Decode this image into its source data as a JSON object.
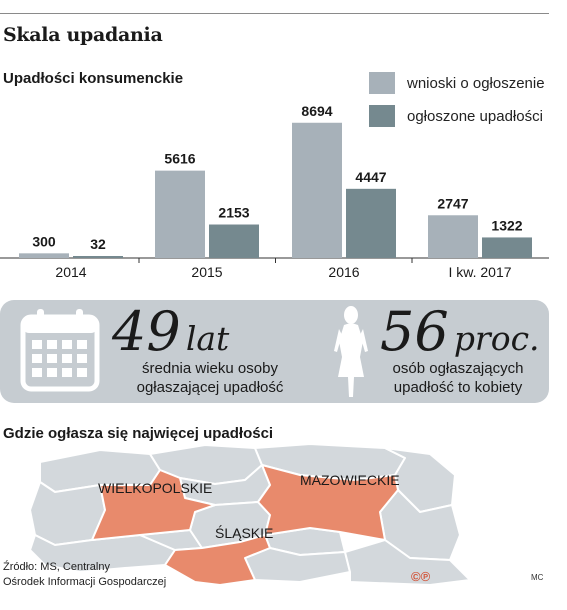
{
  "headline": "Skala upadania",
  "chart_data": {
    "type": "bar",
    "title": "Upadłości konsumenckie",
    "categories": [
      "2014",
      "2015",
      "2016",
      "I kw. 2017"
    ],
    "series": [
      {
        "name": "wnioski o ogłoszenie",
        "values": [
          300,
          5616,
          8694,
          2747
        ],
        "color": "#a7b1b9"
      },
      {
        "name": "ogłoszone upadłości",
        "values": [
          32,
          2153,
          4447,
          1322
        ],
        "color": "#75898f"
      }
    ],
    "ylim": [
      0,
      9000
    ],
    "grid": false,
    "legend": "top-right"
  },
  "stats": {
    "age": {
      "value": "49",
      "unit": "lat",
      "caption_line1": "średnia wieku osoby",
      "caption_line2": "ogłaszającej upadłość",
      "icon": "calendar-icon"
    },
    "women": {
      "value": "56",
      "unit": "proc.",
      "caption_line1": "osób ogłaszających",
      "caption_line2": "upadłość to kobiety",
      "icon": "woman-silhouette-icon"
    }
  },
  "map": {
    "title": "Gdzie ogłasza się najwięcej upadłości",
    "highlight_color": "#e88a6c",
    "base_color": "#d3d8dc",
    "regions": [
      {
        "label": "WIELKOPOLSKIE",
        "highlighted": true
      },
      {
        "label": "MAZOWIECKIE",
        "highlighted": true
      },
      {
        "label": "ŚLĄSKIE",
        "highlighted": true
      }
    ]
  },
  "source": {
    "line1": "Źródło: MS, Centralny",
    "line2": "Ośrodek Informacji Gospodarczej"
  },
  "copyright": "©℗",
  "author": "MC"
}
